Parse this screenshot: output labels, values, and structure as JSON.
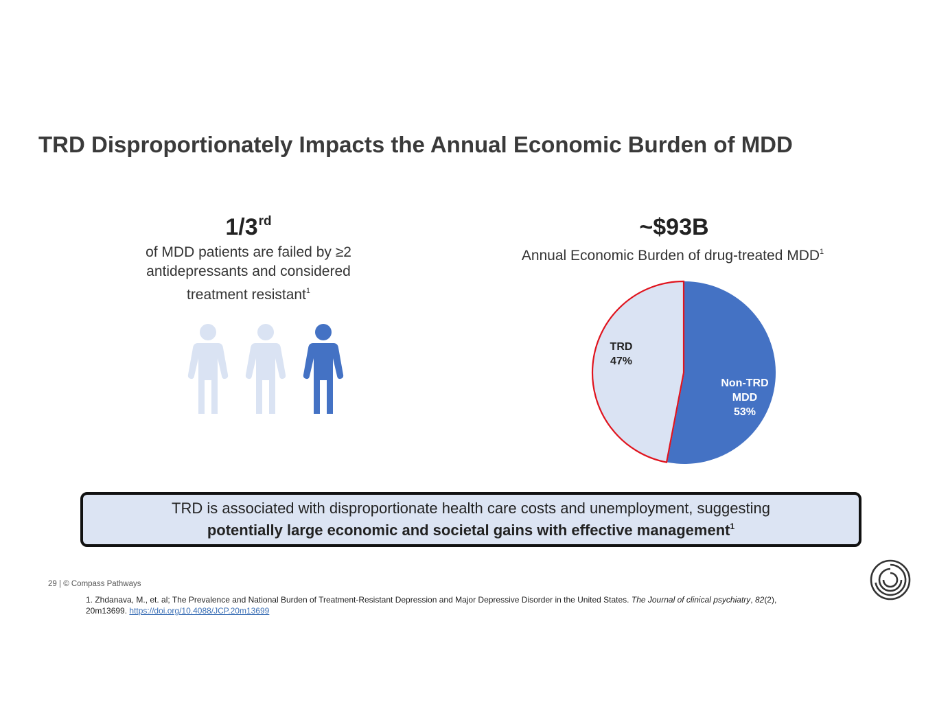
{
  "title": "TRD Disproportionately Impacts the Annual Economic Burden of MDD",
  "left_stat": {
    "value": "1/3",
    "suffix": "rd",
    "lines": [
      "of MDD patients are failed by ≥2",
      "antidepressants and considered",
      "treatment resistant"
    ],
    "footnote_ref": "1"
  },
  "right_stat": {
    "value": "~$93B",
    "description": "Annual Economic Burden of drug-treated MDD",
    "footnote_ref": "1"
  },
  "people_icons": [
    {
      "name": "person-icon",
      "highlighted": false
    },
    {
      "name": "person-icon",
      "highlighted": false
    },
    {
      "name": "person-icon",
      "highlighted": true
    }
  ],
  "colors": {
    "primary_blue": "#4472c4",
    "light_blue": "#dae3f3",
    "highlight_red": "#e0141e",
    "callout_bg": "#dce4f3"
  },
  "chart_data": {
    "type": "pie",
    "slices": [
      {
        "label_lines": [
          "Non-TRD",
          "MDD",
          "53%"
        ],
        "value": 53,
        "color": "#4472c4",
        "text_color": "#ffffff"
      },
      {
        "label_lines": [
          "TRD",
          "47%"
        ],
        "value": 47,
        "color": "#dae3f3",
        "text_color": "#222222",
        "outline": "#e0141e"
      }
    ],
    "legend": "none"
  },
  "callout": {
    "line1": "TRD is associated with disproportionate health care costs and unemployment, suggesting",
    "line2": "potentially large economic and societal gains with effective management",
    "footnote_ref": "1"
  },
  "footer": {
    "page_number": "29",
    "separator": "|",
    "copyright": "© Compass Pathways"
  },
  "reference": {
    "text_a": "1. Zhdanava, M., et. al; The Prevalence and National Burden of Treatment-Resistant Depression and Major Depressive Disorder in the United States. ",
    "journal_a": "The Journal of clinical psychiatry",
    "text_b": ", ",
    "volume": "82",
    "text_c": "(2), 20m13699. ",
    "link": "https://doi.org/10.4088/JCP.20m13699"
  },
  "logo": {
    "icon": "compass-pathways-logo-icon"
  }
}
